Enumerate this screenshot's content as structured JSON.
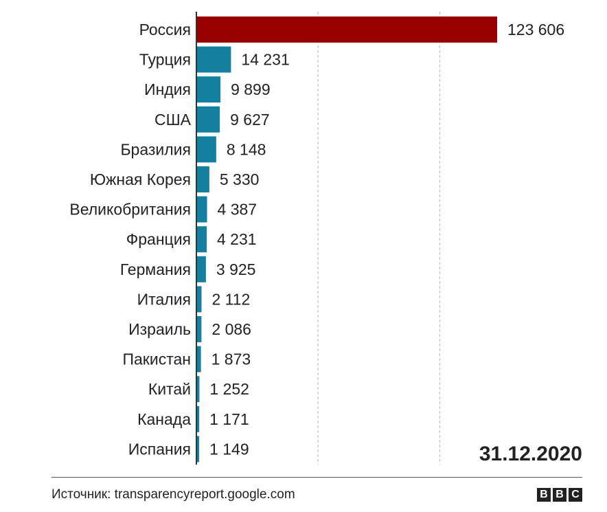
{
  "chart_data": {
    "type": "bar",
    "orientation": "horizontal",
    "categories": [
      "Россия",
      "Турция",
      "Индия",
      "США",
      "Бразилия",
      "Южная Корея",
      "Великобритания",
      "Франция",
      "Германия",
      "Италия",
      "Израиль",
      "Пакистан",
      "Китай",
      "Канада",
      "Испания"
    ],
    "values": [
      123606,
      14231,
      9899,
      9627,
      8148,
      5330,
      4387,
      4231,
      3925,
      2112,
      2086,
      1873,
      1252,
      1171,
      1149
    ],
    "value_labels": [
      "123 606",
      "14 231",
      "9 899",
      "9 627",
      "8 148",
      "5 330",
      "4 387",
      "4 231",
      "3 925",
      "2 112",
      "2 086",
      "1 873",
      "1 252",
      "1 171",
      "1 149"
    ],
    "xlim": [
      0,
      150000
    ],
    "gridlines": [
      50000,
      100000
    ],
    "grid": "dashed vertical",
    "highlight_color": "#990000",
    "bar_color": "#1380A1",
    "date_annotation": "31.12.2020"
  },
  "footer": {
    "source": "Источник: transparencyreport.google.com",
    "logo_letters": [
      "B",
      "B",
      "C"
    ]
  }
}
